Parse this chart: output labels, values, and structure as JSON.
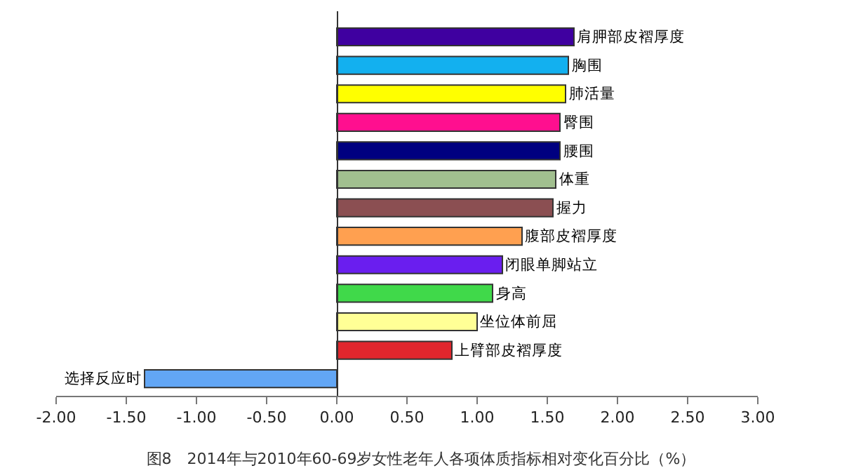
{
  "chart_data": {
    "type": "bar",
    "orientation": "horizontal",
    "title": "图8　2014年与2010年60-69岁女性老年人各项体质指标相对变化百分比（%）",
    "categories": [
      "肩胛部皮褶厚度",
      "胸围",
      "肺活量",
      "臀围",
      "腰围",
      "体重",
      "握力",
      "腹部皮褶厚度",
      "闭眼单脚站立",
      "身高",
      "坐位体前屈",
      "上臂部皮褶厚度",
      "选择反应时"
    ],
    "values": [
      1.69,
      1.65,
      1.63,
      1.59,
      1.59,
      1.56,
      1.54,
      1.32,
      1.18,
      1.11,
      1.0,
      0.82,
      -1.37
    ],
    "colors": [
      "#3f00a0",
      "#13b0ef",
      "#ffff00",
      "#ff0f8f",
      "#000080",
      "#a1bf8f",
      "#8b4f52",
      "#ffa050",
      "#6a1eef",
      "#40d94a",
      "#ffff96",
      "#e0262d",
      "#62a6f5"
    ],
    "xlim": [
      -2,
      3
    ],
    "xticks": [
      {
        "value": -2,
        "label": "-2.00"
      },
      {
        "value": -1.5,
        "label": "-1.50"
      },
      {
        "value": -1,
        "label": "-1.00"
      },
      {
        "value": -0.5,
        "label": "-0.50"
      },
      {
        "value": 0,
        "label": "0.00"
      },
      {
        "value": 0.5,
        "label": "0.50"
      },
      {
        "value": 1,
        "label": "1.00"
      },
      {
        "value": 1.5,
        "label": "1.50"
      },
      {
        "value": 2,
        "label": "2.00"
      },
      {
        "value": 2.5,
        "label": "2.50"
      },
      {
        "value": 3,
        "label": "3.00"
      }
    ],
    "legend": false,
    "tick_labels": "x"
  }
}
